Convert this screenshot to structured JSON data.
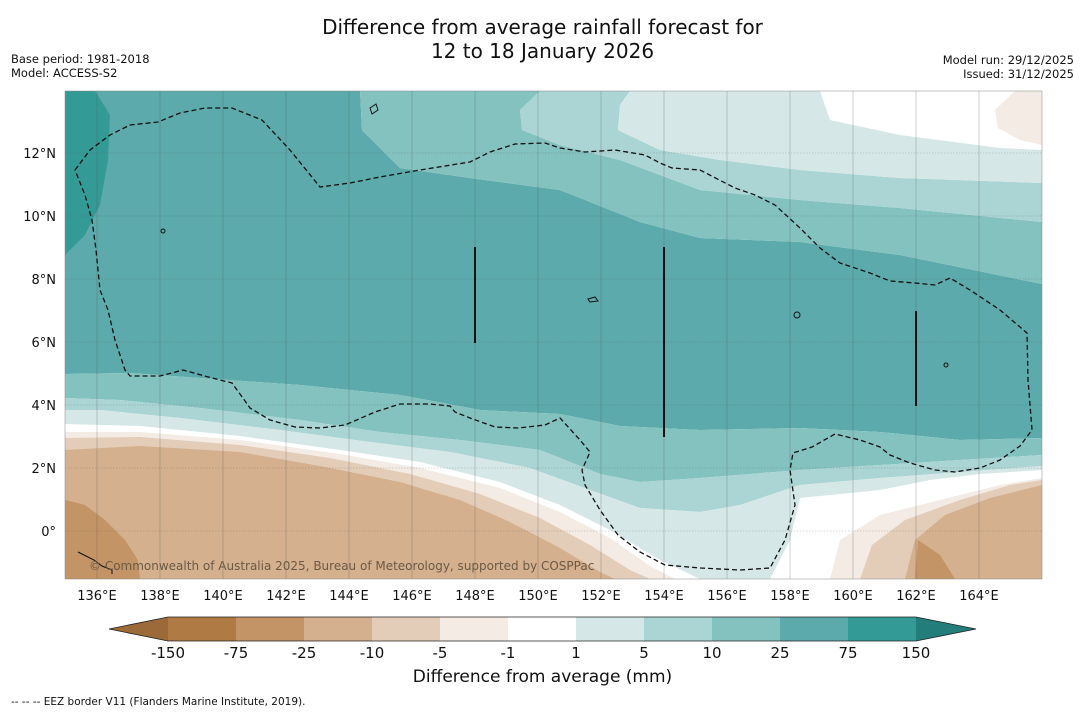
{
  "title": {
    "line1": "Difference from average rainfall forecast for",
    "line2": "12 to 18 January 2026"
  },
  "meta": {
    "base_period": "Base period: 1981-2018",
    "model": "Model: ACCESS-S2",
    "model_run": "Model run: 29/12/2025",
    "issued": "Issued: 31/12/2025"
  },
  "map": {
    "lon_labels": [
      "136°E",
      "138°E",
      "140°E",
      "142°E",
      "144°E",
      "146°E",
      "148°E",
      "150°E",
      "152°E",
      "154°E",
      "156°E",
      "158°E",
      "160°E",
      "162°E",
      "164°E"
    ],
    "lat_labels": [
      "12°N",
      "10°N",
      "8°N",
      "6°N",
      "4°N",
      "2°N",
      "0°"
    ],
    "copyright": "© Commonwealth of Australia 2025, Bureau of Meteorology, supported by COSPPac"
  },
  "colorbar": {
    "ticks": [
      "-150",
      "-75",
      "-25",
      "-10",
      "-5",
      "-1",
      "1",
      "5",
      "10",
      "25",
      "75",
      "150"
    ],
    "colors": [
      "#9c6a38",
      "#b07a45",
      "#c39466",
      "#d4b08e",
      "#e4cdb8",
      "#f3ebe4",
      "#ffffff",
      "#d5e8e7",
      "#aad5d4",
      "#84c2c0",
      "#5caaab",
      "#349a96",
      "#237d7b"
    ],
    "label": "Difference from average (mm)"
  },
  "footnote": "--  --  -- EEZ border V11 (Flanders Marine Institute, 2019)."
}
